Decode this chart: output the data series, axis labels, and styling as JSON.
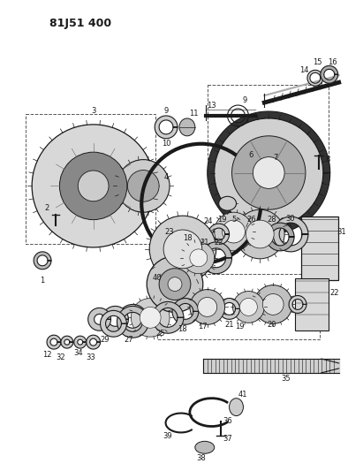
{
  "title": "81J51 400",
  "bg_color": "#ffffff",
  "line_color": "#1a1a1a",
  "fig_width": 3.94,
  "fig_height": 5.33,
  "dpi": 100
}
